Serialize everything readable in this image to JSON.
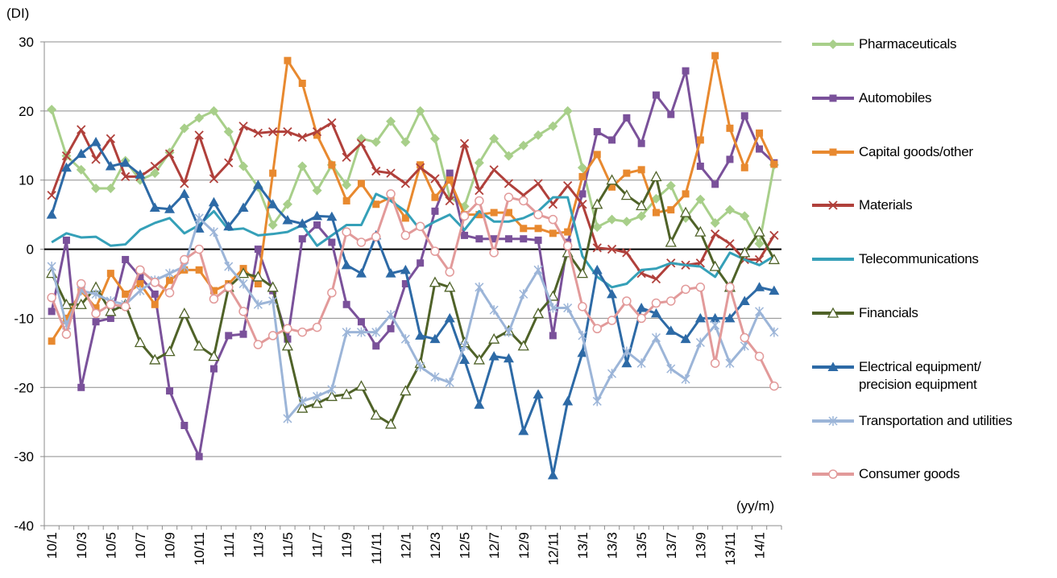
{
  "chart_data": {
    "type": "line",
    "y_label": "(DI)",
    "x_label": "(yy/m)",
    "categories": [
      "10/1",
      null,
      "10/3",
      null,
      "10/5",
      null,
      "10/7",
      null,
      "10/9",
      null,
      "10/11",
      null,
      "11/1",
      null,
      "11/3",
      null,
      "11/5",
      null,
      "11/7",
      null,
      "11/9",
      null,
      "11/11",
      null,
      "12/1",
      null,
      "12/3",
      null,
      "12/5",
      null,
      "12/7",
      null,
      "12/9",
      null,
      "12/11",
      null,
      "13/1",
      null,
      "13/3",
      null,
      "13/5",
      null,
      "13/7",
      null,
      "13/9",
      null,
      "13/11",
      null,
      "14/1",
      null
    ],
    "ylim": [
      -40,
      30
    ],
    "yticks": [
      -40,
      -30,
      -20,
      -10,
      0,
      10,
      20,
      30
    ],
    "grid": true,
    "zero_line": true,
    "legend": "right",
    "series": [
      {
        "name": "Pharmaceuticals",
        "color": "#a8cf8a",
        "marker": "diamond",
        "values": [
          20.2,
          13.5,
          11.5,
          8.8,
          8.8,
          12.8,
          10,
          11,
          14,
          17.5,
          19,
          20,
          17,
          12,
          9,
          3.5,
          6.5,
          12,
          8.5,
          12.2,
          9.3,
          16,
          15.5,
          18.5,
          15.5,
          20,
          16,
          7.5,
          6.2,
          12.5,
          16,
          13.5,
          15,
          16.5,
          17.8,
          20,
          11.8,
          3.2,
          4.3,
          4,
          4.8,
          7.3,
          9.2,
          4.5,
          7.2,
          3.8,
          5.7,
          4.8,
          0.8,
          12.2
        ]
      },
      {
        "name": "Automobiles",
        "color": "#7a519a",
        "marker": "square",
        "values": [
          -9,
          1.3,
          -20,
          -10.5,
          -10,
          -1.5,
          -4,
          -6.5,
          -20.5,
          -25.5,
          -30,
          -17.3,
          -12.5,
          -12.3,
          0,
          -6,
          -13,
          1.5,
          3.5,
          1,
          -8,
          -10.5,
          -14,
          -11.5,
          -5,
          -2,
          5.5,
          11,
          2,
          1.5,
          1.5,
          1.5,
          1.5,
          1.3,
          -12.5,
          1,
          8,
          17,
          15.8,
          19,
          15.3,
          22.3,
          19.5,
          25.8,
          12,
          9.4,
          13,
          19.3,
          14.5,
          12.5
        ]
      },
      {
        "name": "Capital goods/other",
        "color": "#e8892f",
        "marker": "square",
        "values": [
          -13.3,
          -10,
          -6,
          -8.5,
          -3.5,
          -6.5,
          -5,
          -8,
          -4.5,
          -3,
          -3,
          -6,
          -5,
          -2.8,
          -5,
          11,
          27.3,
          24,
          16.5,
          12.2,
          7,
          9.5,
          6.5,
          7.5,
          4.5,
          12.2,
          7.5,
          10,
          5,
          5,
          5.3,
          5.3,
          3,
          3,
          2.3,
          2.5,
          10.5,
          13.7,
          9,
          11,
          11.5,
          5.3,
          5.7,
          8,
          15.8,
          28,
          17.5,
          11.8,
          16.8,
          12.3
        ]
      },
      {
        "name": "Materials",
        "color": "#b0403b",
        "marker": "x",
        "values": [
          7.8,
          13.5,
          17.3,
          13,
          16,
          10.5,
          10.5,
          12,
          13.8,
          9.5,
          16.5,
          10.2,
          12.5,
          17.8,
          16.8,
          17,
          17,
          16.2,
          17,
          18.3,
          13.3,
          15.3,
          11.3,
          11,
          9.5,
          11.8,
          10.2,
          7,
          15.3,
          8.5,
          11.5,
          9.5,
          7.8,
          9.5,
          6.5,
          9.2,
          6.5,
          0.2,
          0,
          -0.5,
          -3.5,
          -4.3,
          -2,
          -2.3,
          -2,
          2.2,
          0.8,
          -1.5,
          -1.5,
          2
        ]
      },
      {
        "name": "Telecommunications",
        "color": "#35a0b8",
        "marker": "none",
        "values": [
          1,
          2.3,
          1.7,
          1.8,
          0.5,
          0.7,
          2.8,
          3.8,
          4.5,
          2.3,
          3.5,
          5.5,
          2.8,
          3,
          2,
          2.2,
          2.5,
          3.5,
          0.5,
          2,
          3.5,
          3.5,
          8,
          7,
          5.5,
          2.8,
          4,
          5,
          2.8,
          5.5,
          4,
          4,
          4.5,
          5.5,
          7.5,
          7.5,
          -1,
          -4,
          -5.5,
          -5,
          -3,
          -2.8,
          -2,
          -2.3,
          -2.5,
          -4,
          -0.5,
          -1.5,
          -2.3,
          -1
        ]
      },
      {
        "name": "Financials",
        "color": "#4f6228",
        "marker": "open-triangle",
        "values": [
          -3.5,
          -8,
          -8,
          -5.5,
          -9,
          -8,
          -13.5,
          -16,
          -14.8,
          -9.3,
          -14,
          -15.5,
          -5.5,
          -3.5,
          -4,
          -5.5,
          -14,
          -23,
          -22.3,
          -21.3,
          -21,
          -19.8,
          -24,
          -25.3,
          -20.5,
          -16.5,
          -4.8,
          -5.5,
          -13.5,
          -16,
          -13,
          -11.8,
          -14,
          -9.3,
          -6.8,
          -0.5,
          -3.5,
          6.5,
          10,
          7.8,
          6.3,
          10.5,
          1,
          5.3,
          2.5,
          -2.5,
          -5.5,
          -0.5,
          2.5,
          -1.5
        ]
      },
      {
        "name": "Electrical equipment/\nprecision equipment",
        "color": "#2d6aa6",
        "marker": "triangle",
        "values": [
          5,
          11.8,
          13.8,
          15.5,
          12,
          12.5,
          10.8,
          6,
          5.8,
          8,
          3,
          6.8,
          3.3,
          6,
          9.3,
          6.5,
          4.2,
          3.7,
          4.8,
          4.7,
          -2.3,
          -3.5,
          2,
          -3.5,
          -3,
          -12.5,
          -13,
          -10,
          -16,
          -22.5,
          -15.5,
          -15.8,
          -26.3,
          -21,
          -32.7,
          -22,
          -15,
          -3,
          -6.5,
          -16.5,
          -8.5,
          -9.3,
          -11.8,
          -13,
          -10,
          -10,
          -10,
          -7.5,
          -5.5,
          -6
        ]
      },
      {
        "name": "Transportation and utilities",
        "color": "#9cb5d8",
        "marker": "star",
        "values": [
          -2.5,
          -11,
          -6,
          -6.5,
          -7.5,
          -8,
          -6,
          -4.5,
          -3.5,
          -2.5,
          4.5,
          2.5,
          -2.5,
          -5,
          -8,
          -7.5,
          -24.5,
          -22,
          -21.3,
          -20.3,
          -12,
          -12,
          -12,
          -9.5,
          -13,
          -17,
          -18.5,
          -19.3,
          -14,
          -5.5,
          -8.8,
          -12,
          -6.5,
          -3,
          -8.5,
          -8.5,
          -12.5,
          -22,
          -18,
          -14.8,
          -16.5,
          -12.8,
          -17.3,
          -18.8,
          -13.5,
          -11,
          -16.5,
          -14,
          -9,
          -12
        ]
      },
      {
        "name": "Consumer goods",
        "color": "#e29a9a",
        "marker": "open-circle",
        "values": [
          -7,
          -12.3,
          -5,
          -9.3,
          -8,
          -8.3,
          -3,
          -4.8,
          -6.3,
          -1.5,
          0,
          -7.2,
          -5.5,
          -9,
          -13.8,
          -12.5,
          -11.5,
          -12,
          -11.3,
          -6.3,
          2.5,
          1,
          1.8,
          8,
          2,
          3.3,
          -0.3,
          -3.3,
          4.8,
          7,
          -0.5,
          7.5,
          7,
          5,
          4.3,
          0.5,
          -8.3,
          -11.5,
          -10.3,
          -7.5,
          -10,
          -7.8,
          -7.5,
          -5.8,
          -5.5,
          -16.5,
          -5.5,
          -12.8,
          -15.5,
          -19.8
        ]
      }
    ]
  }
}
